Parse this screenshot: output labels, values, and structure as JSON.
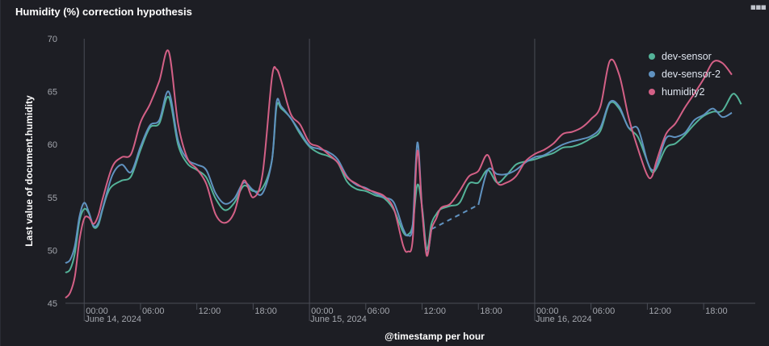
{
  "panel": {
    "title": "Humidity (%) correction hypothesis",
    "menu_icon": "ellipsis-icon"
  },
  "colors": {
    "background": "#1d1e24",
    "grid": "#4a4d56",
    "dev_sensor": "#54b399",
    "dev_sensor_2": "#6092c0",
    "humidity2": "#d36086"
  },
  "chart_data": {
    "type": "line",
    "xlabel": "@timestamp per hour",
    "ylabel": "Last value of document.humidity",
    "ylim": [
      45,
      70
    ],
    "y_ticks": [
      45,
      50,
      55,
      60,
      65,
      70
    ],
    "x_tick_labels": [
      {
        "t": 0,
        "label": "00:00",
        "sub": "June 14, 2024",
        "major": true
      },
      {
        "t": 6,
        "label": "06:00"
      },
      {
        "t": 12,
        "label": "12:00"
      },
      {
        "t": 18,
        "label": "18:00"
      },
      {
        "t": 24,
        "label": "00:00",
        "sub": "June 15, 2024",
        "major": true
      },
      {
        "t": 30,
        "label": "06:00"
      },
      {
        "t": 36,
        "label": "12:00"
      },
      {
        "t": 42,
        "label": "18:00"
      },
      {
        "t": 48,
        "label": "00:00",
        "sub": "June 16, 2024",
        "major": true
      },
      {
        "t": 54,
        "label": "06:00"
      },
      {
        "t": 60,
        "label": "12:00"
      },
      {
        "t": 66,
        "label": "18:00"
      }
    ],
    "xlim_hours": [
      -2,
      71.5
    ],
    "legend_position": "top-right",
    "series": [
      {
        "name": "dev-sensor",
        "color": "#54b399",
        "points": [
          [
            -2,
            47.9
          ],
          [
            -1.5,
            48.2
          ],
          [
            -1,
            49.7
          ],
          [
            -0.5,
            52.8
          ],
          [
            0,
            53.9
          ],
          [
            0.5,
            53.5
          ],
          [
            1,
            52.2
          ],
          [
            1.5,
            52.4
          ],
          [
            2,
            54.0
          ],
          [
            2.5,
            55.4
          ],
          [
            3,
            56.1
          ],
          [
            4,
            56.6
          ],
          [
            5,
            57.0
          ],
          [
            6,
            59.5
          ],
          [
            7,
            61.6
          ],
          [
            8,
            62.0
          ],
          [
            9,
            64.5
          ],
          [
            10,
            60.0
          ],
          [
            11,
            58.2
          ],
          [
            12,
            57.6
          ],
          [
            13,
            56.9
          ],
          [
            14,
            54.9
          ],
          [
            15,
            53.8
          ],
          [
            16,
            54.5
          ],
          [
            17,
            56.1
          ],
          [
            18,
            55.6
          ],
          [
            19,
            55.9
          ],
          [
            20,
            58.5
          ],
          [
            20.5,
            63.6
          ],
          [
            21,
            63.4
          ],
          [
            22,
            62.5
          ],
          [
            23,
            61.0
          ],
          [
            24,
            59.8
          ],
          [
            25,
            59.2
          ],
          [
            26,
            58.9
          ],
          [
            27,
            58.3
          ],
          [
            28,
            56.5
          ],
          [
            29,
            55.8
          ],
          [
            30,
            55.6
          ],
          [
            31,
            55.2
          ],
          [
            32,
            54.9
          ],
          [
            33,
            53.8
          ],
          [
            34,
            51.7
          ],
          [
            34.5,
            51.5
          ],
          [
            35,
            52.4
          ],
          [
            35.5,
            56.2
          ],
          [
            36,
            54.1
          ],
          [
            36.5,
            50.1
          ],
          [
            37,
            52.5
          ],
          [
            37.5,
            53.4
          ],
          [
            38,
            53.9
          ],
          [
            39,
            54.2
          ],
          [
            40,
            54.5
          ],
          [
            41,
            56.3
          ],
          [
            42,
            56.4
          ],
          [
            43,
            57.6
          ],
          [
            44,
            56.4
          ],
          [
            45,
            57.1
          ],
          [
            46,
            58.1
          ],
          [
            47,
            58.4
          ],
          [
            48,
            58.6
          ],
          [
            49,
            58.9
          ],
          [
            50,
            59.2
          ],
          [
            51,
            59.7
          ],
          [
            52,
            59.8
          ],
          [
            53,
            60.1
          ],
          [
            54,
            60.6
          ],
          [
            55,
            61.3
          ],
          [
            56,
            63.9
          ],
          [
            57,
            63.4
          ],
          [
            58,
            61.6
          ],
          [
            59,
            60.7
          ],
          [
            60,
            58.4
          ],
          [
            60.5,
            57.4
          ],
          [
            61,
            57.8
          ],
          [
            62,
            59.7
          ],
          [
            63,
            60.1
          ],
          [
            64,
            60.9
          ],
          [
            65,
            61.9
          ],
          [
            66,
            62.7
          ],
          [
            67,
            63.1
          ],
          [
            68,
            63.2
          ],
          [
            69,
            64.7
          ],
          [
            69.5,
            64.6
          ],
          [
            70,
            63.8
          ]
        ]
      },
      {
        "name": "dev-sensor-2",
        "color": "#6092c0",
        "points": [
          [
            -2,
            48.8
          ],
          [
            -1.5,
            49.1
          ],
          [
            -1,
            50.4
          ],
          [
            -0.5,
            53.2
          ],
          [
            0,
            54.5
          ],
          [
            0.5,
            53.6
          ],
          [
            1,
            52.3
          ],
          [
            1.5,
            52.6
          ],
          [
            2,
            54.1
          ],
          [
            3,
            57.1
          ],
          [
            4,
            58.1
          ],
          [
            5,
            57.4
          ],
          [
            6,
            59.8
          ],
          [
            7,
            61.8
          ],
          [
            8,
            62.3
          ],
          [
            9,
            65.0
          ],
          [
            10,
            60.4
          ],
          [
            11,
            58.6
          ],
          [
            12,
            58.1
          ],
          [
            13,
            57.6
          ],
          [
            14,
            55.4
          ],
          [
            15,
            54.4
          ],
          [
            16,
            54.9
          ],
          [
            17,
            56.4
          ],
          [
            18,
            55.7
          ],
          [
            19,
            55.4
          ],
          [
            20,
            58.5
          ],
          [
            20.5,
            64.0
          ],
          [
            21,
            63.6
          ],
          [
            22,
            62.5
          ],
          [
            23,
            61.2
          ],
          [
            24,
            59.9
          ],
          [
            25,
            59.6
          ],
          [
            26,
            59.3
          ],
          [
            27,
            58.6
          ],
          [
            28,
            57.0
          ],
          [
            29,
            56.2
          ],
          [
            30,
            55.9
          ],
          [
            31,
            55.4
          ],
          [
            32,
            55.0
          ],
          [
            33,
            54.5
          ],
          [
            34,
            52.0
          ],
          [
            34.5,
            51.4
          ],
          [
            35,
            52.4
          ],
          [
            35.5,
            60.2
          ],
          [
            36,
            54.0
          ],
          [
            36.5,
            49.7
          ],
          [
            37,
            52.0
          ],
          [
            37.5,
            52.3
          ],
          [
            38,
            52.8
          ],
          [
            39,
            53.4
          ],
          [
            40,
            53.8
          ],
          [
            41,
            54.1
          ],
          [
            42,
            54.3
          ],
          [
            43,
            57.6
          ],
          [
            44,
            57.2
          ],
          [
            45,
            57.2
          ],
          [
            46,
            57.6
          ],
          [
            47,
            58.3
          ],
          [
            48,
            58.8
          ],
          [
            49,
            59.0
          ],
          [
            50,
            59.5
          ],
          [
            51,
            60.0
          ],
          [
            52,
            60.3
          ],
          [
            53,
            60.5
          ],
          [
            54,
            60.8
          ],
          [
            55,
            61.6
          ],
          [
            56,
            64.0
          ],
          [
            57,
            63.6
          ],
          [
            58,
            61.6
          ],
          [
            59,
            61.5
          ],
          [
            60,
            58.4
          ],
          [
            60.5,
            57.6
          ],
          [
            61,
            58.0
          ],
          [
            62,
            60.6
          ],
          [
            63,
            60.7
          ],
          [
            64,
            61.1
          ],
          [
            65,
            62.3
          ],
          [
            66,
            62.8
          ],
          [
            67,
            63.4
          ],
          [
            68,
            62.6
          ],
          [
            69,
            63.0
          ]
        ]
      },
      {
        "name": "humidity2",
        "color": "#d36086",
        "points": [
          [
            -2,
            45.5
          ],
          [
            -1.5,
            46.0
          ],
          [
            -1,
            47.5
          ],
          [
            -0.5,
            51.0
          ],
          [
            0,
            53.0
          ],
          [
            0.5,
            53.1
          ],
          [
            1,
            52.5
          ],
          [
            1.5,
            53.3
          ],
          [
            2,
            55.0
          ],
          [
            3,
            57.9
          ],
          [
            4,
            58.8
          ],
          [
            5,
            59.1
          ],
          [
            6,
            62.1
          ],
          [
            7,
            63.8
          ],
          [
            8,
            66.0
          ],
          [
            9,
            68.8
          ],
          [
            10,
            62.0
          ],
          [
            11,
            58.7
          ],
          [
            12,
            57.7
          ],
          [
            13,
            56.3
          ],
          [
            14,
            53.4
          ],
          [
            15,
            52.6
          ],
          [
            16,
            53.6
          ],
          [
            17,
            56.6
          ],
          [
            18,
            55.0
          ],
          [
            19,
            57.2
          ],
          [
            20,
            66.3
          ],
          [
            20.5,
            67.1
          ],
          [
            21,
            66.0
          ],
          [
            22,
            62.9
          ],
          [
            23,
            61.9
          ],
          [
            24,
            60.2
          ],
          [
            25,
            59.8
          ],
          [
            26,
            59.1
          ],
          [
            27,
            58.3
          ],
          [
            28,
            56.9
          ],
          [
            29,
            56.3
          ],
          [
            30,
            55.8
          ],
          [
            31,
            55.5
          ],
          [
            32,
            55.1
          ],
          [
            33,
            53.9
          ],
          [
            34,
            50.4
          ],
          [
            34.5,
            49.9
          ],
          [
            35,
            51.0
          ],
          [
            35.5,
            59.4
          ],
          [
            36,
            53.8
          ],
          [
            36.5,
            49.5
          ],
          [
            37,
            52.0
          ],
          [
            37.5,
            53.0
          ],
          [
            38,
            54.0
          ],
          [
            39,
            54.4
          ],
          [
            40,
            55.6
          ],
          [
            41,
            57.0
          ],
          [
            42,
            57.5
          ],
          [
            43,
            59.0
          ],
          [
            44,
            56.4
          ],
          [
            45,
            56.4
          ],
          [
            46,
            57.0
          ],
          [
            47,
            58.4
          ],
          [
            48,
            59.1
          ],
          [
            49,
            59.5
          ],
          [
            50,
            60.1
          ],
          [
            51,
            61.0
          ],
          [
            52,
            61.2
          ],
          [
            53,
            61.6
          ],
          [
            54,
            62.4
          ],
          [
            55,
            63.6
          ],
          [
            56,
            67.9
          ],
          [
            57,
            66.6
          ],
          [
            58,
            62.6
          ],
          [
            59,
            59.6
          ],
          [
            60,
            57.1
          ],
          [
            60.5,
            57.0
          ],
          [
            61,
            58.5
          ],
          [
            62,
            61.0
          ],
          [
            63,
            62.0
          ],
          [
            64,
            63.5
          ],
          [
            65,
            64.8
          ],
          [
            66,
            66.2
          ],
          [
            67,
            67.8
          ],
          [
            68,
            67.7
          ],
          [
            69,
            66.6
          ]
        ]
      }
    ],
    "dashed_gap": {
      "series": "dev-sensor-2",
      "from": [
        37,
        52.0
      ],
      "to": [
        42,
        54.3
      ]
    }
  }
}
